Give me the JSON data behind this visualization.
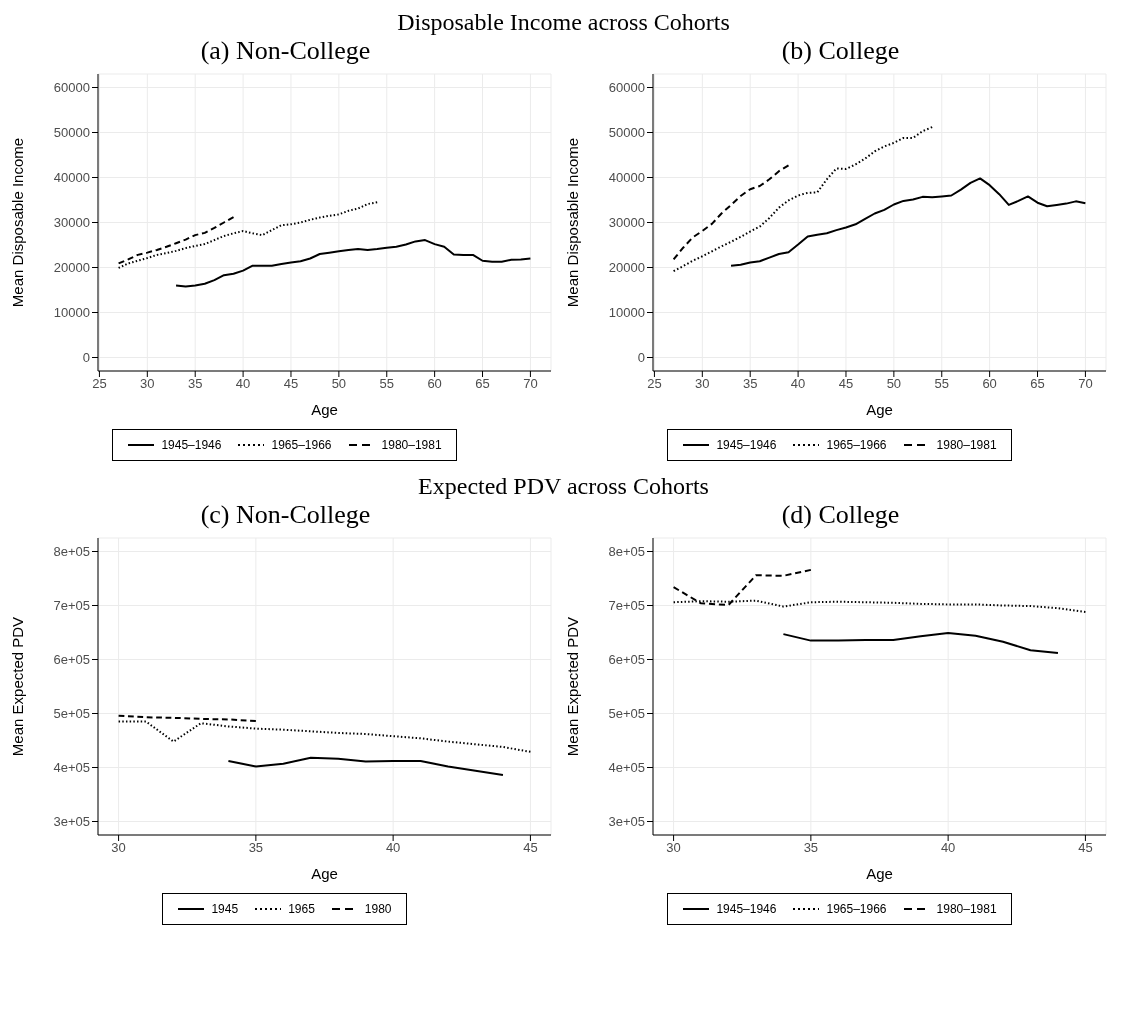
{
  "chart_data": [
    {
      "type": "line",
      "title": "Disposable Income across Cohorts",
      "subtitle": "(a) Non-College",
      "xlabel": "Age",
      "ylabel": "Mean Disposable Income",
      "xlim": [
        24.85,
        72.15
      ],
      "xticks": [
        25,
        30,
        35,
        40,
        45,
        50,
        55,
        60,
        65,
        70
      ],
      "ylim": [
        -3000,
        63000
      ],
      "yticks": [
        0,
        10000,
        20000,
        30000,
        40000,
        50000,
        60000
      ],
      "grid": true,
      "legend": "bottom",
      "series": [
        {
          "name": "1945–1946",
          "color": "#000000",
          "line_style": "solid",
          "x": [
            33,
            34,
            35,
            36,
            37,
            38,
            39,
            40,
            41,
            42,
            43,
            44,
            45,
            46,
            47,
            48,
            49,
            50,
            51,
            52,
            53,
            54,
            55,
            56,
            57,
            58,
            59,
            60,
            61,
            62,
            63,
            64,
            65,
            66,
            67,
            68,
            69,
            70
          ],
          "values": [
            16000,
            15800,
            16000,
            16400,
            17200,
            18300,
            18600,
            19300,
            20400,
            20400,
            20400,
            20800,
            21100,
            21400,
            22000,
            23000,
            23300,
            23600,
            23900,
            24100,
            23900,
            24100,
            24400,
            24600,
            25100,
            25800,
            26100,
            25200,
            24600,
            22900,
            22800,
            22800,
            21500,
            21300,
            21300,
            21700,
            21800,
            22000
          ]
        },
        {
          "name": "1965–1966",
          "color": "#000000",
          "line_style": "dotted",
          "x": [
            27,
            28,
            29,
            30,
            31,
            32,
            33,
            34,
            35,
            36,
            37,
            38,
            39,
            40,
            41,
            42,
            43,
            44,
            45,
            46,
            47,
            48,
            49,
            50,
            51,
            52,
            53,
            54
          ],
          "values": [
            19900,
            20900,
            21500,
            22100,
            22800,
            23200,
            23700,
            24300,
            24800,
            25200,
            26100,
            27000,
            27600,
            28100,
            27600,
            27200,
            28300,
            29400,
            29600,
            30000,
            30600,
            31100,
            31500,
            31800,
            32600,
            33100,
            34100,
            34500
          ]
        },
        {
          "name": "1980–1981",
          "color": "#000000",
          "line_style": "dashed",
          "x": [
            27,
            28,
            29,
            30,
            31,
            32,
            33,
            34,
            35,
            36,
            37,
            38,
            39
          ],
          "values": [
            20900,
            21800,
            22800,
            23300,
            23900,
            24600,
            25400,
            26200,
            27200,
            27700,
            28800,
            30000,
            31200
          ]
        }
      ]
    },
    {
      "type": "line",
      "subtitle": "(b) College",
      "xlabel": "Age",
      "ylabel": "Mean Disposable Income",
      "xlim": [
        24.85,
        72.15
      ],
      "xticks": [
        25,
        30,
        35,
        40,
        45,
        50,
        55,
        60,
        65,
        70
      ],
      "ylim": [
        -3000,
        63000
      ],
      "yticks": [
        0,
        10000,
        20000,
        30000,
        40000,
        50000,
        60000
      ],
      "grid": true,
      "legend": "bottom",
      "series": [
        {
          "name": "1945–1946",
          "color": "#000000",
          "line_style": "solid",
          "x": [
            33,
            34,
            35,
            36,
            37,
            38,
            39,
            40,
            41,
            42,
            43,
            44,
            45,
            46,
            47,
            48,
            49,
            50,
            51,
            52,
            53,
            54,
            55,
            56,
            57,
            58,
            59,
            60,
            61,
            62,
            63,
            64,
            65,
            66,
            67,
            68,
            69,
            70
          ],
          "values": [
            20400,
            20600,
            21100,
            21400,
            22200,
            23000,
            23400,
            25100,
            26900,
            27300,
            27600,
            28300,
            28900,
            29600,
            30800,
            32000,
            32800,
            34000,
            34800,
            35100,
            35700,
            35600,
            35800,
            36000,
            37300,
            38800,
            39800,
            38300,
            36300,
            33900,
            34800,
            35800,
            34400,
            33600,
            33900,
            34200,
            34700,
            34300
          ]
        },
        {
          "name": "1965–1966",
          "color": "#000000",
          "line_style": "dotted",
          "x": [
            27,
            28,
            29,
            30,
            31,
            32,
            33,
            34,
            35,
            36,
            37,
            38,
            39,
            40,
            41,
            42,
            43,
            44,
            45,
            46,
            47,
            48,
            49,
            50,
            51,
            52,
            53,
            54
          ],
          "values": [
            19200,
            20300,
            21500,
            22500,
            23600,
            24700,
            25700,
            26800,
            28000,
            29100,
            31000,
            33300,
            34900,
            36000,
            36600,
            36700,
            39600,
            42000,
            41900,
            42900,
            44200,
            45800,
            46900,
            47700,
            48800,
            48800,
            50300,
            51200
          ]
        },
        {
          "name": "1980–1981",
          "color": "#000000",
          "line_style": "dashed",
          "x": [
            27,
            28,
            29,
            30,
            31,
            32,
            33,
            34,
            35,
            36,
            37,
            38,
            39
          ],
          "values": [
            21800,
            24400,
            26700,
            28100,
            29700,
            32000,
            33900,
            35900,
            37400,
            38100,
            39600,
            41400,
            42700
          ]
        }
      ]
    },
    {
      "type": "line",
      "title": "Expected PDV across Cohorts",
      "subtitle": "(c) Non-College",
      "xlabel": "Age",
      "ylabel": "Mean Expected PDV",
      "xlim": [
        29.25,
        45.75
      ],
      "xticks": [
        30,
        35,
        40,
        45
      ],
      "ylim": [
        275000,
        825000
      ],
      "yticks": [
        {
          "value": 300000,
          "label": "3e+05"
        },
        {
          "value": 400000,
          "label": "4e+05"
        },
        {
          "value": 500000,
          "label": "5e+05"
        },
        {
          "value": 600000,
          "label": "6e+05"
        },
        {
          "value": 700000,
          "label": "7e+05"
        },
        {
          "value": 800000,
          "label": "8e+05"
        }
      ],
      "grid": true,
      "legend": "bottom",
      "series": [
        {
          "name": "1945",
          "color": "#000000",
          "line_style": "solid",
          "x": [
            34,
            35,
            36,
            37,
            38,
            39,
            40,
            41,
            42,
            43,
            44
          ],
          "values": [
            412000,
            402000,
            407000,
            418000,
            416000,
            411000,
            412000,
            412000,
            402000,
            394000,
            386000
          ]
        },
        {
          "name": "1965",
          "color": "#000000",
          "line_style": "dotted",
          "x": [
            30,
            31,
            32,
            33,
            34,
            35,
            36,
            37,
            38,
            39,
            40,
            41,
            42,
            43,
            44,
            45
          ],
          "values": [
            485000,
            485000,
            448000,
            482000,
            476000,
            472000,
            470000,
            467000,
            464000,
            462000,
            458000,
            454000,
            448000,
            443000,
            438000,
            429000
          ]
        },
        {
          "name": "1980",
          "color": "#000000",
          "line_style": "dashed",
          "x": [
            30,
            31,
            32,
            33,
            34,
            35
          ],
          "values": [
            496000,
            493000,
            492000,
            490000,
            489000,
            486000
          ]
        }
      ]
    },
    {
      "type": "line",
      "subtitle": "(d) College",
      "xlabel": "Age",
      "ylabel": "Mean Expected PDV",
      "xlim": [
        29.25,
        45.75
      ],
      "xticks": [
        30,
        35,
        40,
        45
      ],
      "ylim": [
        275000,
        825000
      ],
      "yticks": [
        {
          "value": 300000,
          "label": "3e+05"
        },
        {
          "value": 400000,
          "label": "4e+05"
        },
        {
          "value": 500000,
          "label": "5e+05"
        },
        {
          "value": 600000,
          "label": "6e+05"
        },
        {
          "value": 700000,
          "label": "7e+05"
        },
        {
          "value": 800000,
          "label": "8e+05"
        }
      ],
      "grid": true,
      "legend": "bottom",
      "series": [
        {
          "name": "1945–1946",
          "color": "#000000",
          "line_style": "solid",
          "x": [
            34,
            35,
            36,
            37,
            38,
            39,
            40,
            41,
            42,
            43,
            44
          ],
          "values": [
            647000,
            635000,
            635000,
            636000,
            636000,
            643000,
            649000,
            644000,
            633000,
            617000,
            612000
          ]
        },
        {
          "name": "1965–1966",
          "color": "#000000",
          "line_style": "dotted",
          "x": [
            30,
            31,
            32,
            33,
            34,
            35,
            36,
            37,
            38,
            39,
            40,
            41,
            42,
            43,
            44,
            45
          ],
          "values": [
            706000,
            708000,
            707000,
            709000,
            698000,
            706000,
            707000,
            706000,
            705000,
            703000,
            702000,
            702000,
            700000,
            699000,
            695000,
            688000
          ]
        },
        {
          "name": "1980–1981",
          "color": "#000000",
          "line_style": "dashed",
          "x": [
            30,
            31,
            32,
            33,
            34,
            35
          ],
          "values": [
            734000,
            704000,
            701000,
            756000,
            755000,
            766000
          ]
        }
      ]
    }
  ]
}
